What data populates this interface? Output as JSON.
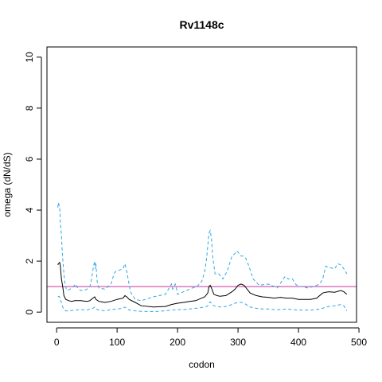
{
  "chart_data": {
    "type": "line",
    "title": "Rv1148c",
    "xlabel": "codon",
    "ylabel": "omega (dN/dS)",
    "xlim": [
      -16,
      496
    ],
    "ylim": [
      -0.4,
      10.4
    ],
    "x_ticks": [
      0,
      100,
      200,
      300,
      400,
      500
    ],
    "y_ticks": [
      0,
      2,
      4,
      6,
      8,
      10
    ],
    "grid": false,
    "reference_line": {
      "y": 1,
      "color": "#cc3399"
    },
    "series": [
      {
        "role": "upper",
        "color": "#2fa8e0",
        "style": "dashed",
        "x": [
          2,
          3,
          5,
          6,
          7,
          8,
          9,
          10,
          12,
          14,
          16,
          18,
          22,
          28,
          31,
          35,
          40,
          45,
          50,
          55,
          57,
          59,
          61,
          63,
          64,
          65,
          67,
          70,
          80,
          90,
          95,
          98,
          100,
          104,
          110,
          113,
          116,
          119,
          122,
          130,
          140,
          160,
          180,
          190,
          192,
          196,
          198,
          200,
          210,
          220,
          225,
          232,
          240,
          245,
          248,
          250,
          252,
          254,
          256,
          258,
          262,
          268,
          275,
          282,
          290,
          295,
          298,
          302,
          305,
          309,
          313,
          318,
          325,
          335,
          350,
          365,
          372,
          378,
          383,
          390,
          395,
          400,
          407,
          415,
          425,
          435,
          440,
          445,
          450,
          460,
          465,
          470,
          475,
          480
        ],
        "y": [
          4.1,
          4.3,
          4.1,
          3.6,
          3.3,
          3.0,
          2.5,
          2.1,
          1.5,
          1.1,
          0.9,
          0.85,
          0.9,
          1.0,
          1.1,
          0.95,
          0.85,
          0.85,
          0.9,
          1.0,
          1.2,
          1.5,
          1.8,
          2.0,
          1.7,
          1.9,
          1.2,
          0.95,
          0.9,
          1.1,
          1.5,
          1.6,
          1.6,
          1.65,
          1.7,
          1.9,
          1.6,
          1.2,
          0.8,
          0.5,
          0.45,
          0.6,
          0.7,
          1.1,
          0.9,
          1.1,
          0.95,
          0.7,
          0.8,
          0.9,
          0.95,
          1.0,
          1.2,
          1.6,
          2.1,
          2.6,
          3.1,
          3.2,
          2.9,
          2.2,
          1.5,
          1.5,
          1.3,
          1.6,
          2.2,
          2.3,
          2.4,
          2.3,
          2.2,
          2.2,
          2.1,
          1.8,
          1.3,
          1.05,
          1.1,
          0.95,
          1.2,
          1.4,
          1.3,
          1.3,
          1.1,
          1.0,
          1.0,
          0.95,
          1.0,
          1.1,
          1.3,
          1.8,
          1.75,
          1.7,
          1.9,
          1.85,
          1.7,
          1.5
        ]
      },
      {
        "role": "estimate",
        "color": "#000000",
        "style": "solid",
        "x": [
          2,
          3,
          5,
          6,
          8,
          10,
          12,
          15,
          20,
          25,
          30,
          40,
          50,
          55,
          60,
          63,
          65,
          70,
          80,
          90,
          100,
          110,
          113,
          116,
          120,
          130,
          140,
          160,
          180,
          190,
          200,
          210,
          220,
          230,
          240,
          245,
          250,
          252,
          254,
          256,
          260,
          265,
          270,
          280,
          290,
          295,
          300,
          305,
          310,
          320,
          330,
          340,
          350,
          360,
          370,
          380,
          390,
          400,
          410,
          420,
          430,
          440,
          445,
          450,
          460,
          470,
          475,
          480
        ],
        "y": [
          1.85,
          1.9,
          1.95,
          1.85,
          1.3,
          1.0,
          0.65,
          0.5,
          0.45,
          0.42,
          0.45,
          0.45,
          0.42,
          0.45,
          0.55,
          0.6,
          0.5,
          0.42,
          0.38,
          0.42,
          0.5,
          0.55,
          0.65,
          0.6,
          0.5,
          0.38,
          0.25,
          0.2,
          0.22,
          0.3,
          0.35,
          0.38,
          0.42,
          0.45,
          0.55,
          0.6,
          0.75,
          1.0,
          1.05,
          0.95,
          0.7,
          0.65,
          0.62,
          0.65,
          0.8,
          0.9,
          1.05,
          1.1,
          1.05,
          0.75,
          0.65,
          0.6,
          0.58,
          0.55,
          0.58,
          0.55,
          0.55,
          0.5,
          0.5,
          0.5,
          0.55,
          0.75,
          0.78,
          0.8,
          0.78,
          0.85,
          0.8,
          0.7
        ]
      },
      {
        "role": "lower",
        "color": "#2fa8e0",
        "style": "dashed",
        "x": [
          2,
          4,
          6,
          8,
          10,
          12,
          15,
          20,
          30,
          40,
          50,
          55,
          60,
          63,
          65,
          70,
          80,
          90,
          100,
          110,
          113,
          116,
          120,
          130,
          140,
          160,
          180,
          190,
          200,
          210,
          220,
          230,
          240,
          245,
          250,
          252,
          254,
          256,
          260,
          270,
          280,
          290,
          295,
          300,
          305,
          310,
          320,
          330,
          340,
          350,
          360,
          370,
          380,
          390,
          400,
          410,
          420,
          430,
          440,
          445,
          450,
          460,
          470,
          475,
          480
        ],
        "y": [
          0.6,
          0.62,
          0.55,
          0.35,
          0.2,
          0.1,
          0.05,
          0.05,
          0.08,
          0.1,
          0.08,
          0.12,
          0.15,
          0.2,
          0.12,
          0.08,
          0.05,
          0.1,
          0.12,
          0.15,
          0.2,
          0.15,
          0.08,
          0.05,
          0.03,
          0.02,
          0.05,
          0.08,
          0.1,
          0.1,
          0.12,
          0.15,
          0.18,
          0.2,
          0.25,
          0.35,
          0.4,
          0.35,
          0.25,
          0.2,
          0.22,
          0.3,
          0.35,
          0.38,
          0.38,
          0.35,
          0.2,
          0.15,
          0.12,
          0.12,
          0.1,
          0.1,
          0.12,
          0.1,
          0.08,
          0.08,
          0.08,
          0.1,
          0.15,
          0.2,
          0.22,
          0.25,
          0.3,
          0.25,
          0.05
        ]
      }
    ]
  }
}
